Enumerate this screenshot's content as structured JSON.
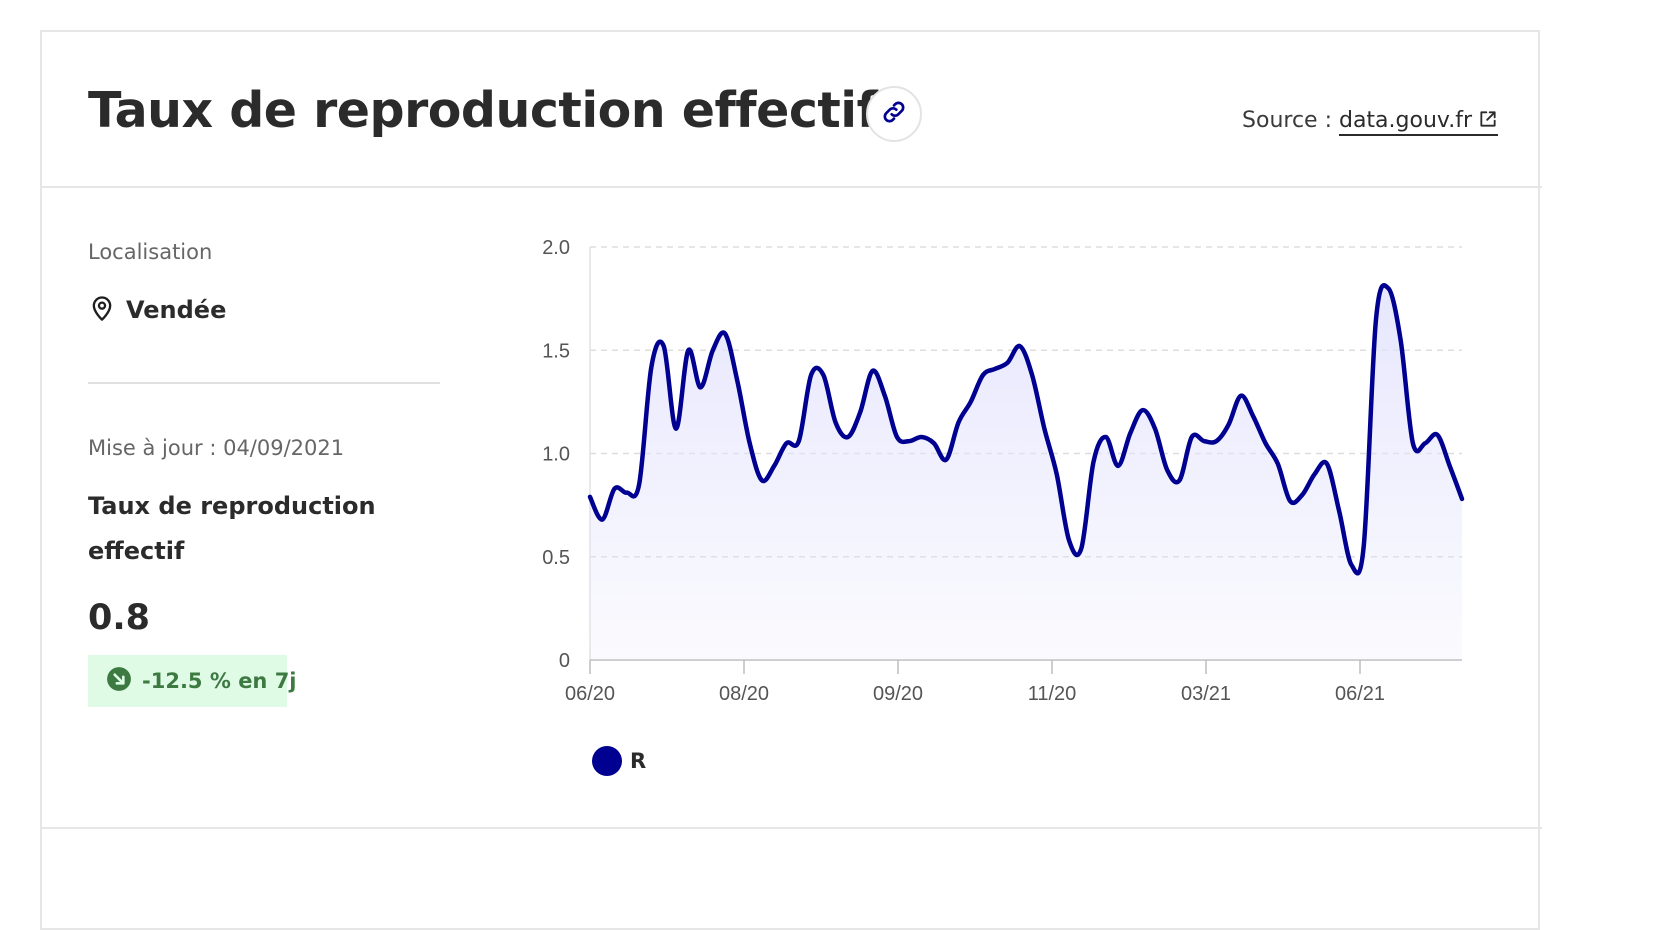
{
  "header": {
    "title": "Taux de reproduction effectif",
    "source_prefix": "Source : ",
    "source_link": "data.gouv.fr",
    "link_icon": "link-icon",
    "external_icon": "external-link-icon"
  },
  "location": {
    "label": "Localisation",
    "value": "Vendée",
    "icon": "map-pin-icon"
  },
  "metric": {
    "update": "Mise à jour : 04/09/2021",
    "title": "Taux de reproduction effectif",
    "value": "0.8",
    "trend": "-12.5 % en 7j",
    "trend_icon": "arrow-down-right-icon"
  },
  "colors": {
    "accent": "#000091",
    "fill": "#e3e3fd",
    "trend_bg": "#dffbe6",
    "trend_text": "#3d7a42"
  },
  "chart_data": {
    "type": "area",
    "x_tick_labels": [
      "06/20",
      "08/20",
      "09/20",
      "11/20",
      "03/21",
      "06/21"
    ],
    "y_tick_labels": [
      "0",
      "0.5",
      "1.0",
      "1.5",
      "2.0"
    ],
    "y_ticks": [
      0,
      0.5,
      1.0,
      1.5,
      2.0
    ],
    "ylim": [
      0,
      2.0
    ],
    "grid": true,
    "legend": "bottom-left",
    "series": [
      {
        "name": "R",
        "color": "#000091",
        "values": [
          0.79,
          0.68,
          0.83,
          0.81,
          0.85,
          1.42,
          1.52,
          1.12,
          1.5,
          1.32,
          1.5,
          1.58,
          1.35,
          1.05,
          0.87,
          0.94,
          1.05,
          1.06,
          1.38,
          1.38,
          1.15,
          1.08,
          1.2,
          1.4,
          1.28,
          1.08,
          1.06,
          1.08,
          1.05,
          0.97,
          1.15,
          1.25,
          1.38,
          1.41,
          1.44,
          1.52,
          1.38,
          1.12,
          0.9,
          0.58,
          0.54,
          0.96,
          1.08,
          0.94,
          1.1,
          1.21,
          1.12,
          0.92,
          0.87,
          1.08,
          1.06,
          1.06,
          1.14,
          1.28,
          1.18,
          1.05,
          0.95,
          0.77,
          0.8,
          0.9,
          0.95,
          0.72,
          0.46,
          0.55,
          1.65,
          1.8,
          1.55,
          1.05,
          1.05,
          1.09,
          0.94,
          0.78
        ]
      }
    ]
  }
}
